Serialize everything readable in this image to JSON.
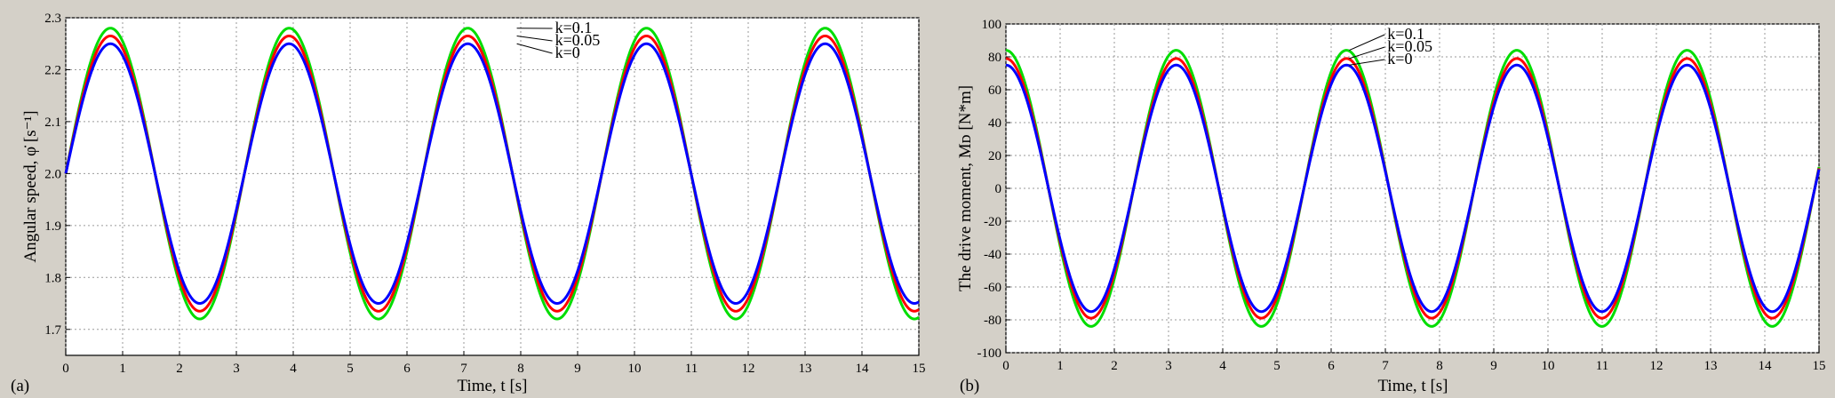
{
  "chart_data": [
    {
      "type": "line",
      "panel_label": "(a)",
      "xlabel": "Time, t [s]",
      "ylabel": "Angular speed, φ̇ [s⁻¹]",
      "xlim": [
        0,
        15
      ],
      "ylim": [
        1.65,
        2.3
      ],
      "xticks": [
        0,
        1,
        2,
        3,
        4,
        5,
        6,
        7,
        8,
        9,
        10,
        11,
        12,
        13,
        14,
        15
      ],
      "yticks": [
        1.7,
        1.8,
        1.9,
        2.0,
        2.1,
        2.2,
        2.3
      ],
      "grid": true,
      "series": [
        {
          "name": "k=0",
          "color": "#0000ff",
          "offset": 2.0,
          "amplitude": 0.25,
          "period": 3.14159,
          "phase": 0
        },
        {
          "name": "k=0.05",
          "color": "#ff0000",
          "offset": 2.0,
          "amplitude": 0.265,
          "period": 3.14159,
          "phase": 0
        },
        {
          "name": "k=0.1",
          "color": "#00dd00",
          "offset": 2.0,
          "amplitude": 0.28,
          "period": 3.14159,
          "phase": 0
        }
      ],
      "annotations": [
        "k=0.1",
        "k=0.05",
        "k=0"
      ],
      "annotation_anchor": {
        "x": 7.9,
        "y_values": [
          2.28,
          2.265,
          2.25
        ]
      }
    },
    {
      "type": "line",
      "panel_label": "(b)",
      "xlabel": "Time, t [s]",
      "ylabel": "The drive moment, Mᴅ [N*m]",
      "xlim": [
        0,
        15
      ],
      "ylim": [
        -100,
        100
      ],
      "xticks": [
        0,
        1,
        2,
        3,
        4,
        5,
        6,
        7,
        8,
        9,
        10,
        11,
        12,
        13,
        14,
        15
      ],
      "yticks": [
        -100,
        -80,
        -60,
        -40,
        -20,
        0,
        20,
        40,
        60,
        80,
        100
      ],
      "grid": true,
      "series": [
        {
          "name": "k=0",
          "color": "#0000ff",
          "offset": 0,
          "amplitude": 75,
          "period": 3.14159,
          "phase": 1.5708
        },
        {
          "name": "k=0.05",
          "color": "#ff0000",
          "offset": 0,
          "amplitude": 79,
          "period": 3.14159,
          "phase": 1.5708
        },
        {
          "name": "k=0.1",
          "color": "#00dd00",
          "offset": 0,
          "amplitude": 84,
          "period": 3.14159,
          "phase": 1.5708
        }
      ],
      "annotations": [
        "k=0.1",
        "k=0.05",
        "k=0"
      ],
      "annotation_anchor": {
        "x": 6.3,
        "y_values": [
          84,
          79,
          75
        ]
      }
    }
  ]
}
